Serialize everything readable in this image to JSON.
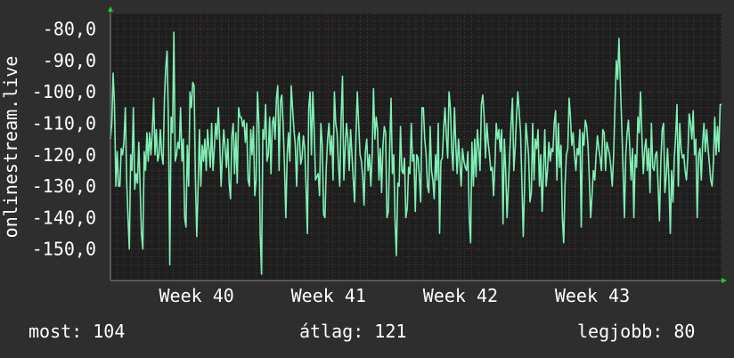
{
  "chart_data": {
    "type": "line",
    "ylabel": "onlinestream.live",
    "ylim": [
      -160,
      -75
    ],
    "yticks": [
      -80,
      -90,
      -100,
      -110,
      -120,
      -130,
      -140,
      -150
    ],
    "ytick_labels": [
      "-80,0",
      "-90,0",
      "-100,0",
      "-110,0",
      "-120,0",
      "-130,0",
      "-140,0",
      "-150,0"
    ],
    "xlim": [
      0,
      440
    ],
    "xticks": [
      {
        "x": 62,
        "label": "Week 40"
      },
      {
        "x": 157,
        "label": "Week 41"
      },
      {
        "x": 252,
        "label": "Week 42"
      },
      {
        "x": 347,
        "label": "Week 43"
      }
    ],
    "grid": true,
    "colors": {
      "line": "#7ff0b4",
      "background": "#1e1e1e",
      "grid": "#3e3e3e",
      "grid_red": "#4a2424",
      "arrow": "#22cc22"
    },
    "series": [
      {
        "values": [
          -115,
          -110,
          -94,
          -104,
          -130,
          -119,
          -130,
          -130,
          -118,
          -120,
          -116,
          -105,
          -128,
          -140,
          -150,
          -120,
          -125,
          -105,
          -131,
          -126,
          -129,
          -116,
          -130,
          -145,
          -150,
          -119,
          -125,
          -113,
          -122,
          -113,
          -120,
          -113,
          -102,
          -120,
          -112,
          -122,
          -120,
          -112,
          -120,
          -123,
          -102,
          -92,
          -87,
          -110,
          -155,
          -108,
          -113,
          -81,
          -122,
          -120,
          -116,
          -118,
          -105,
          -122,
          -115,
          -140,
          -143,
          -117,
          -130,
          -100,
          -105,
          -97,
          -98,
          -128,
          -146,
          -130,
          -112,
          -130,
          -117,
          -122,
          -115,
          -125,
          -112,
          -118,
          -124,
          -110,
          -125,
          -118,
          -110,
          -115,
          -105,
          -116,
          -130,
          -120,
          -112,
          -118,
          -124,
          -115,
          -129,
          -134,
          -114,
          -110,
          -126,
          -113,
          -129,
          -105,
          -108,
          -108,
          -111,
          -109,
          -116,
          -110,
          -128,
          -130,
          -112,
          -120,
          -111,
          -133,
          -128,
          -100,
          -110,
          -145,
          -158,
          -112,
          -115,
          -104,
          -122,
          -120,
          -108,
          -126,
          -110,
          -108,
          -115,
          -102,
          -98,
          -125,
          -103,
          -101,
          -110,
          -124,
          -140,
          -120,
          -113,
          -122,
          -98,
          -105,
          -112,
          -117,
          -130,
          -115,
          -113,
          -123,
          -121,
          -114,
          -118,
          -130,
          -145,
          -105,
          -100,
          -120,
          -100,
          -112,
          -128,
          -127,
          -126,
          -133,
          -110,
          -117,
          -139,
          -140,
          -124,
          -115,
          -110,
          -120,
          -114,
          -128,
          -100,
          -110,
          -113,
          -123,
          -130,
          -108,
          -95,
          -128,
          -118,
          -110,
          -115,
          -125,
          -112,
          -120,
          -128,
          -135,
          -114,
          -100,
          -110,
          -120,
          -122,
          -127,
          -136,
          -119,
          -115,
          -125,
          -120,
          -130,
          -120,
          -99,
          -115,
          -108,
          -112,
          -128,
          -118,
          -132,
          -117,
          -111,
          -113,
          -140,
          -138,
          -118,
          -102,
          -126,
          -120,
          -141,
          -152,
          -129,
          -130,
          -111,
          -125,
          -126,
          -121,
          -140,
          -137,
          -124,
          -126,
          -110,
          -122,
          -120,
          -138,
          -120,
          -121,
          -127,
          -135,
          -105,
          -105,
          -115,
          -120,
          -130,
          -132,
          -111,
          -125,
          -128,
          -134,
          -120,
          -128,
          -110,
          -145,
          -122,
          -121,
          -112,
          -105,
          -114,
          -121,
          -100,
          -105,
          -118,
          -125,
          -105,
          -117,
          -126,
          -115,
          -122,
          -130,
          -118,
          -122,
          -124,
          -125,
          -119,
          -140,
          -148,
          -116,
          -130,
          -115,
          -127,
          -112,
          -118,
          -125,
          -104,
          -101,
          -108,
          -121,
          -110,
          -116,
          -120,
          -125,
          -124,
          -133,
          -123,
          -110,
          -115,
          -112,
          -119,
          -112,
          -142,
          -115,
          -125,
          -140,
          -130,
          -120,
          -110,
          -102,
          -125,
          -118,
          -108,
          -100,
          -106,
          -113,
          -129,
          -146,
          -130,
          -110,
          -115,
          -120,
          -135,
          -132,
          -110,
          -128,
          -115,
          -118,
          -112,
          -130,
          -120,
          -138,
          -125,
          -112,
          -130,
          -125,
          -116,
          -122,
          -118,
          -119,
          -110,
          -106,
          -128,
          -110,
          -124,
          -117,
          -140,
          -148,
          -130,
          -120,
          -118,
          -102,
          -108,
          -117,
          -113,
          -120,
          -125,
          -118,
          -120,
          -112,
          -143,
          -113,
          -117,
          -109,
          -111,
          -117,
          -128,
          -140,
          -133,
          -125,
          -128,
          -120,
          -114,
          -118,
          -121,
          -125,
          -112,
          -113,
          -125,
          -116,
          -118,
          -120,
          -124,
          -130,
          -120,
          -104,
          -90,
          -96,
          -83,
          -97,
          -110,
          -125,
          -140,
          -120,
          -113,
          -109,
          -118,
          -128,
          -118,
          -140,
          -120,
          -124,
          -108,
          -113,
          -100,
          -115,
          -126,
          -118,
          -115,
          -125,
          -118,
          -132,
          -110,
          -124,
          -125,
          -120,
          -119,
          -130,
          -141,
          -122,
          -112,
          -110,
          -132,
          -127,
          -118,
          -128,
          -145,
          -125,
          -135,
          -121,
          -114,
          -104,
          -130,
          -110,
          -118,
          -121,
          -120,
          -125,
          -128,
          -121,
          -107,
          -110,
          -115,
          -106,
          -120,
          -115,
          -140,
          -120,
          -118,
          -128,
          -116,
          -110,
          -119,
          -112,
          -118,
          -123,
          -128,
          -130,
          -122,
          -108,
          -120,
          -111,
          -119,
          -104,
          -104
        ]
      }
    ]
  },
  "stats": {
    "now": "most: 104",
    "avg": "átlag: 121",
    "best": "legjobb: 80"
  }
}
